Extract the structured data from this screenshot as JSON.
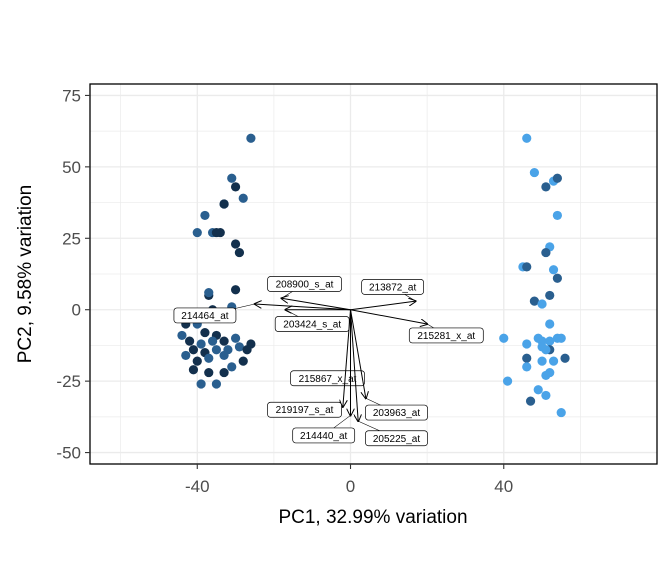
{
  "chart_data": {
    "type": "scatter",
    "subtype": "pca-biplot",
    "title": "",
    "xlabel": "PC1, 32.99% variation",
    "ylabel": "PC2, 9.58% variation",
    "xlim": [
      -68,
      80
    ],
    "ylim": [
      -54,
      79
    ],
    "xticks": [
      -40,
      0,
      40
    ],
    "yticks": [
      -50,
      -25,
      0,
      25,
      50,
      75
    ],
    "grid": true,
    "legend": "none",
    "colors": {
      "dark": "#13304d",
      "mid": "#2a5f8f",
      "light": "#4aa3e8",
      "arrow": "#000000",
      "panel_border": "#000000",
      "grid": "#ebebeb"
    },
    "points": [
      {
        "x": -26,
        "y": 60,
        "g": "mid"
      },
      {
        "x": -31,
        "y": 46,
        "g": "mid"
      },
      {
        "x": -30,
        "y": 43,
        "g": "dark"
      },
      {
        "x": -28,
        "y": 39,
        "g": "mid"
      },
      {
        "x": -33,
        "y": 37,
        "g": "mid"
      },
      {
        "x": -33,
        "y": 37,
        "g": "dark"
      },
      {
        "x": -38,
        "y": 33,
        "g": "mid"
      },
      {
        "x": -40,
        "y": 27,
        "g": "mid"
      },
      {
        "x": -36,
        "y": 27,
        "g": "mid"
      },
      {
        "x": -34,
        "y": 27,
        "g": "dark"
      },
      {
        "x": -35,
        "y": 27,
        "g": "dark"
      },
      {
        "x": -30,
        "y": 23,
        "g": "dark"
      },
      {
        "x": -29,
        "y": 20,
        "g": "dark"
      },
      {
        "x": -30,
        "y": 7,
        "g": "dark"
      },
      {
        "x": -37,
        "y": 5,
        "g": "dark"
      },
      {
        "x": -37,
        "y": 6,
        "g": "mid"
      },
      {
        "x": -31,
        "y": 1,
        "g": "mid"
      },
      {
        "x": -36,
        "y": 0,
        "g": "dark"
      },
      {
        "x": -37,
        "y": -3,
        "g": "mid"
      },
      {
        "x": -32,
        "y": -3,
        "g": "mid"
      },
      {
        "x": -43,
        "y": -5,
        "g": "dark"
      },
      {
        "x": -40,
        "y": -5,
        "g": "mid"
      },
      {
        "x": -38,
        "y": -8,
        "g": "dark"
      },
      {
        "x": -35,
        "y": -9,
        "g": "dark"
      },
      {
        "x": -30,
        "y": -10,
        "g": "mid"
      },
      {
        "x": -44,
        "y": -9,
        "g": "mid"
      },
      {
        "x": -42,
        "y": -11,
        "g": "dark"
      },
      {
        "x": -39,
        "y": -12,
        "g": "mid"
      },
      {
        "x": -36,
        "y": -11,
        "g": "mid"
      },
      {
        "x": -33,
        "y": -11,
        "g": "dark"
      },
      {
        "x": -26,
        "y": -12,
        "g": "dark"
      },
      {
        "x": -41,
        "y": -14,
        "g": "dark"
      },
      {
        "x": -38,
        "y": -15,
        "g": "dark"
      },
      {
        "x": -35,
        "y": -14,
        "g": "mid"
      },
      {
        "x": -32,
        "y": -14,
        "g": "mid"
      },
      {
        "x": -29,
        "y": -13,
        "g": "mid"
      },
      {
        "x": -27,
        "y": -14,
        "g": "dark"
      },
      {
        "x": -43,
        "y": -16,
        "g": "mid"
      },
      {
        "x": -40,
        "y": -18,
        "g": "dark"
      },
      {
        "x": -37,
        "y": -17,
        "g": "mid"
      },
      {
        "x": -33,
        "y": -16,
        "g": "mid"
      },
      {
        "x": -28,
        "y": -18,
        "g": "dark"
      },
      {
        "x": -41,
        "y": -21,
        "g": "dark"
      },
      {
        "x": -37,
        "y": -22,
        "g": "dark"
      },
      {
        "x": -31,
        "y": -20,
        "g": "mid"
      },
      {
        "x": -33,
        "y": -22,
        "g": "dark"
      },
      {
        "x": -39,
        "y": -26,
        "g": "mid"
      },
      {
        "x": -35,
        "y": -26,
        "g": "mid"
      },
      {
        "x": 46,
        "y": 60,
        "g": "light"
      },
      {
        "x": 48,
        "y": 48,
        "g": "light"
      },
      {
        "x": 51,
        "y": 43,
        "g": "mid"
      },
      {
        "x": 53,
        "y": 45,
        "g": "light"
      },
      {
        "x": 54,
        "y": 46,
        "g": "mid"
      },
      {
        "x": 54,
        "y": 33,
        "g": "light"
      },
      {
        "x": 52,
        "y": 22,
        "g": "light"
      },
      {
        "x": 51,
        "y": 20,
        "g": "mid"
      },
      {
        "x": 45,
        "y": 15,
        "g": "light"
      },
      {
        "x": 46,
        "y": 15,
        "g": "mid"
      },
      {
        "x": 53,
        "y": 14,
        "g": "light"
      },
      {
        "x": 54,
        "y": 11,
        "g": "mid"
      },
      {
        "x": 52,
        "y": 5,
        "g": "mid"
      },
      {
        "x": 48,
        "y": 3,
        "g": "mid"
      },
      {
        "x": 50,
        "y": 2,
        "g": "light"
      },
      {
        "x": 52,
        "y": -5,
        "g": "light"
      },
      {
        "x": 40,
        "y": -10,
        "g": "light"
      },
      {
        "x": 46,
        "y": -12,
        "g": "light"
      },
      {
        "x": 49,
        "y": -10,
        "g": "light"
      },
      {
        "x": 50,
        "y": -11,
        "g": "light"
      },
      {
        "x": 52,
        "y": -11,
        "g": "light"
      },
      {
        "x": 54,
        "y": -10,
        "g": "light"
      },
      {
        "x": 55,
        "y": -10,
        "g": "light"
      },
      {
        "x": 50,
        "y": -13,
        "g": "light"
      },
      {
        "x": 52,
        "y": -14,
        "g": "mid"
      },
      {
        "x": 51,
        "y": -14,
        "g": "light"
      },
      {
        "x": 46,
        "y": -17,
        "g": "mid"
      },
      {
        "x": 50,
        "y": -18,
        "g": "light"
      },
      {
        "x": 53,
        "y": -18,
        "g": "light"
      },
      {
        "x": 56,
        "y": -17,
        "g": "mid"
      },
      {
        "x": 52,
        "y": -22,
        "g": "light"
      },
      {
        "x": 51,
        "y": -23,
        "g": "light"
      },
      {
        "x": 41,
        "y": -25,
        "g": "light"
      },
      {
        "x": 46,
        "y": -20,
        "g": "light"
      },
      {
        "x": 49,
        "y": -28,
        "g": "light"
      },
      {
        "x": 51,
        "y": -30,
        "g": "light"
      },
      {
        "x": 47,
        "y": -32,
        "g": "mid"
      },
      {
        "x": 55,
        "y": -36,
        "g": "light"
      }
    ],
    "loadings": [
      {
        "name": "208900_s_at",
        "x": -18,
        "y": 4,
        "label_x": -12,
        "label_y": 9
      },
      {
        "name": "213872_at",
        "x": 17,
        "y": 3,
        "label_x": 11,
        "label_y": 8
      },
      {
        "name": "214464_at",
        "x": -25,
        "y": 2,
        "label_x": -38,
        "label_y": -2
      },
      {
        "name": "203424_s_at",
        "x": -17,
        "y": 0,
        "label_x": -10,
        "label_y": -5
      },
      {
        "name": "215281_x_at",
        "x": 20,
        "y": -5,
        "label_x": 25,
        "label_y": -9
      },
      {
        "name": "215867_x_at",
        "x": 0,
        "y": -26,
        "label_x": -6,
        "label_y": -24
      },
      {
        "name": "219197_s_at",
        "x": -2,
        "y": -34,
        "label_x": -12,
        "label_y": -35
      },
      {
        "name": "214440_at",
        "x": 0,
        "y": -37,
        "label_x": -7,
        "label_y": -44
      },
      {
        "name": "203963_at",
        "x": 4,
        "y": -31,
        "label_x": 12,
        "label_y": -36
      },
      {
        "name": "205225_at",
        "x": 2,
        "y": -39,
        "label_x": 12,
        "label_y": -45
      }
    ]
  }
}
